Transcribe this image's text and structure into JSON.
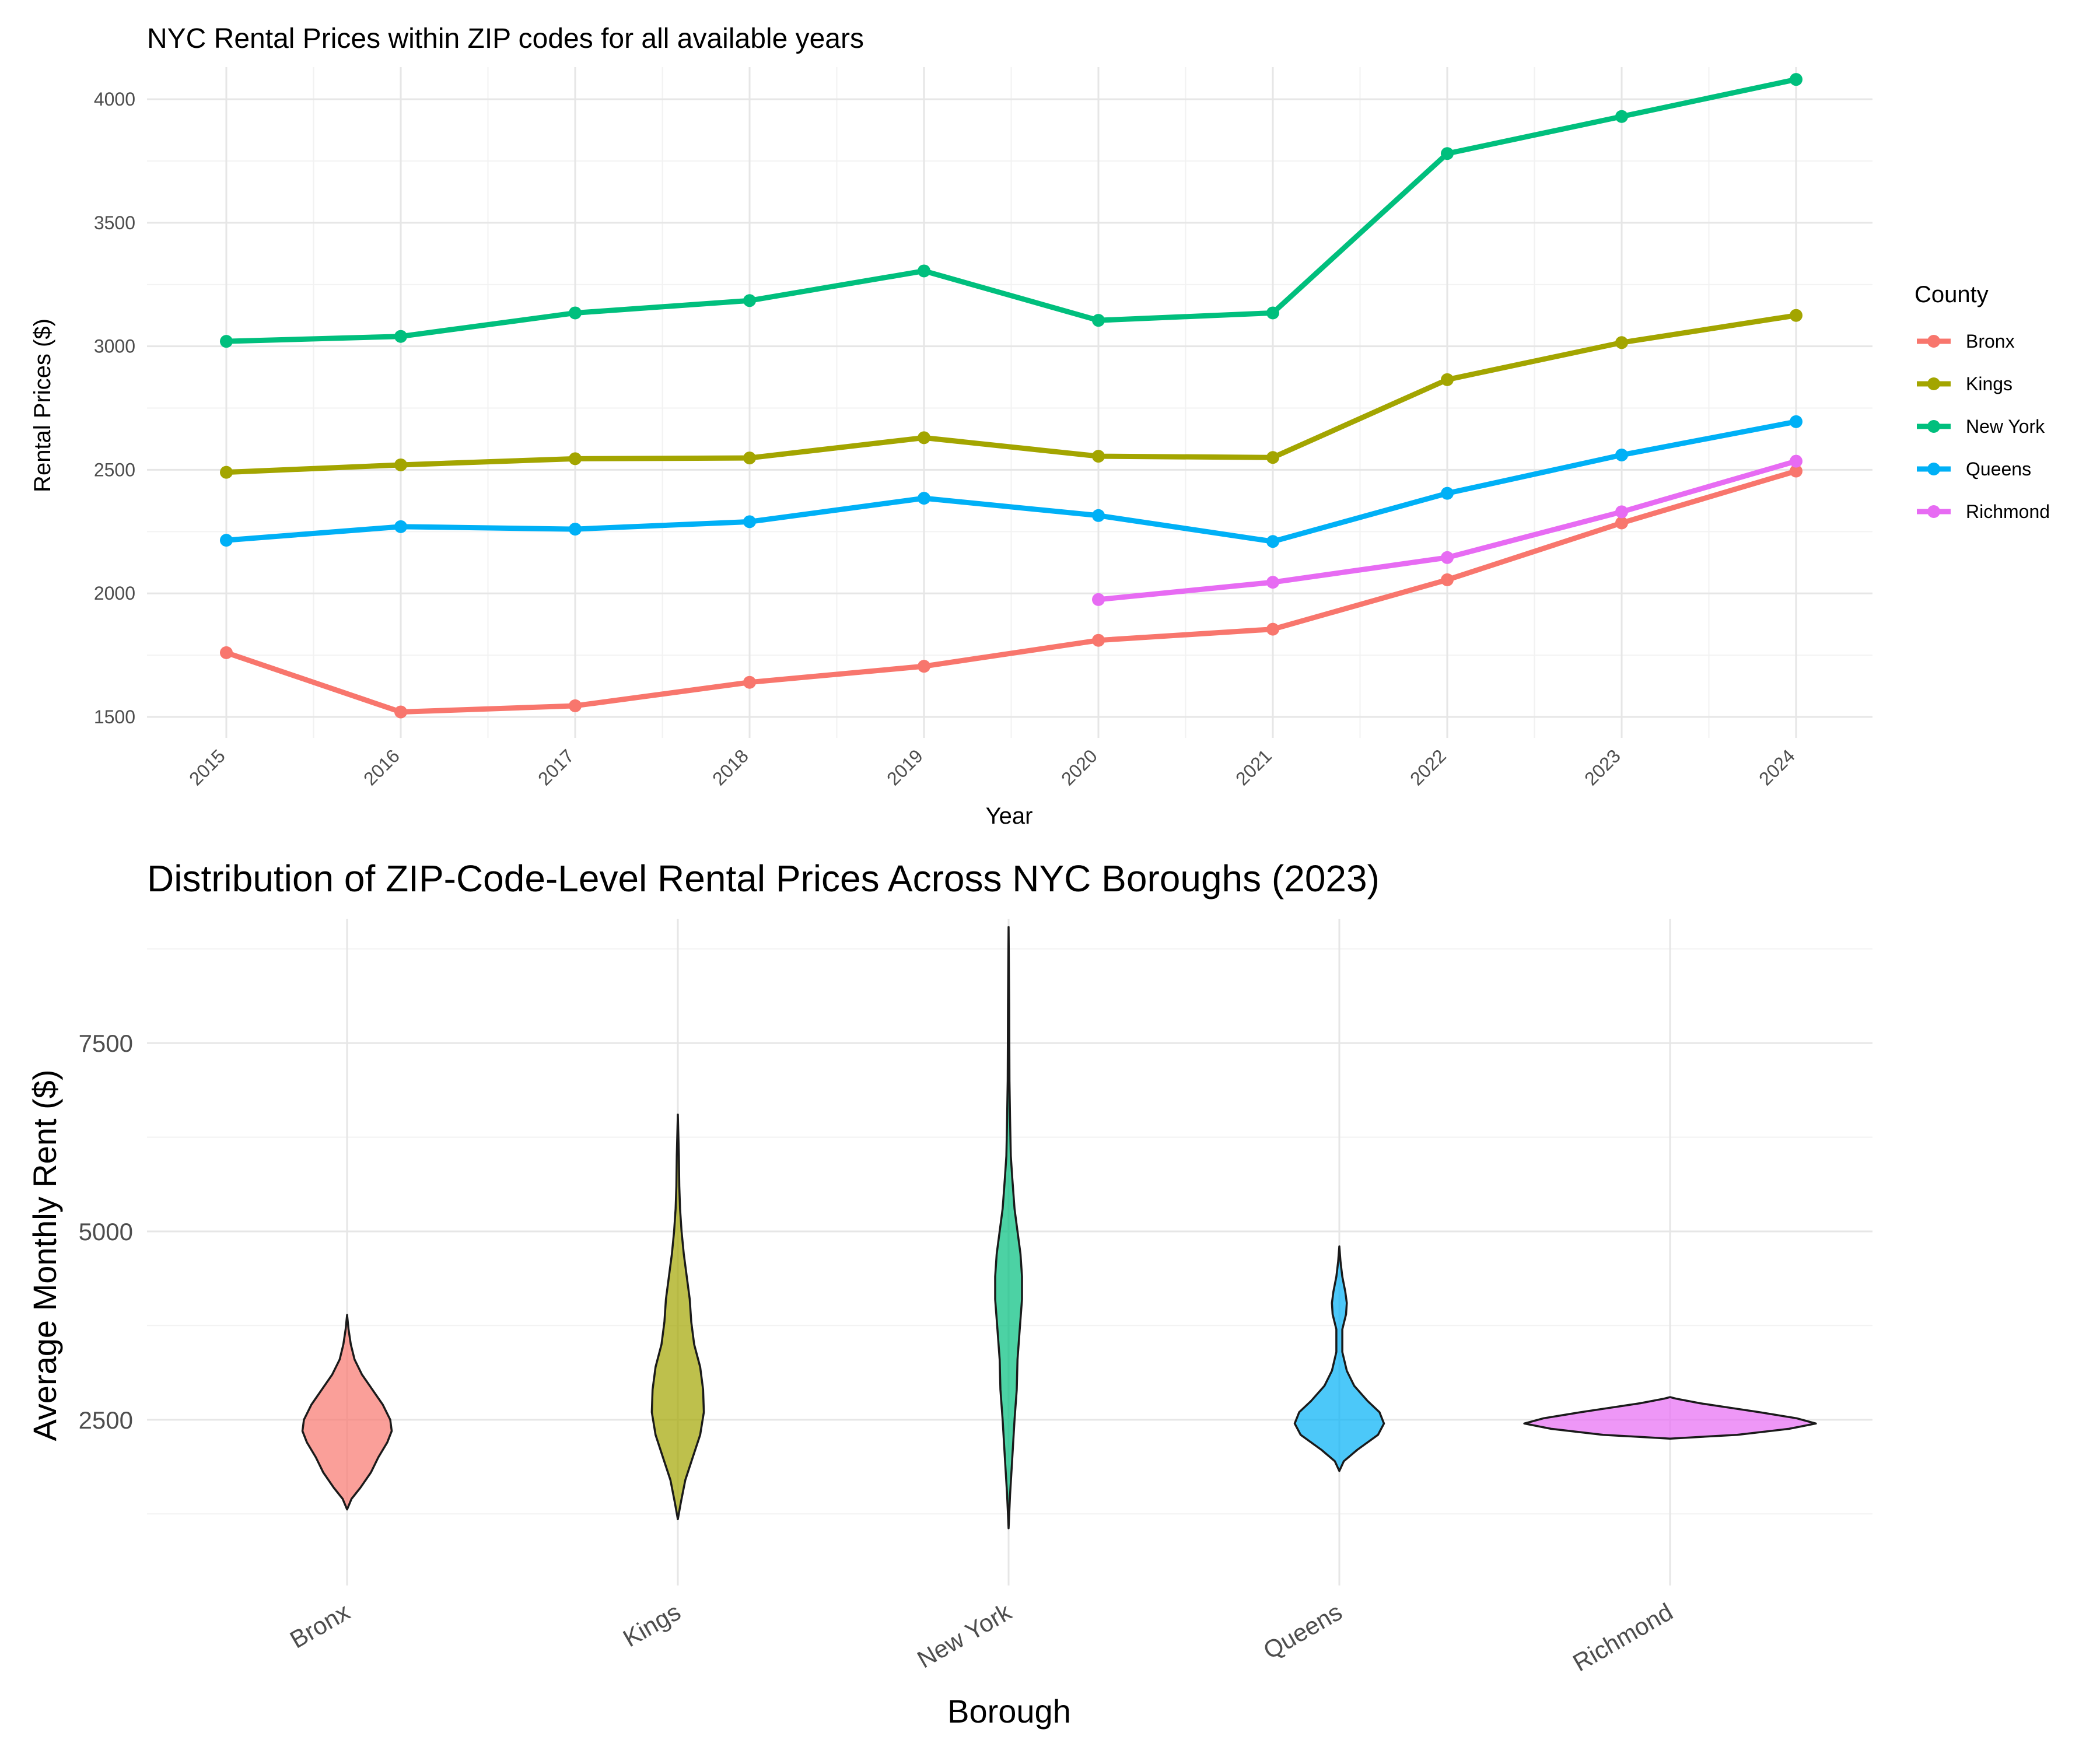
{
  "chart_data": [
    {
      "type": "line",
      "title": "NYC Rental Prices within ZIP codes for all available years",
      "xlabel": "Year",
      "ylabel": "Rental Prices ($)",
      "x": [
        2015,
        2016,
        2017,
        2018,
        2019,
        2020,
        2021,
        2022,
        2023,
        2024
      ],
      "x_tick_labels": [
        "2015",
        "2016",
        "2017",
        "2018",
        "2019",
        "2020",
        "2021",
        "2022",
        "2023",
        "2024"
      ],
      "y_ticks": [
        1500,
        2000,
        2500,
        3000,
        3500,
        4000
      ],
      "y_tick_labels": [
        "1500",
        "2000",
        "2500",
        "3000",
        "3500",
        "4000"
      ],
      "ylim": [
        1415,
        4130
      ],
      "grid": true,
      "legend_title": "County",
      "legend_position": "right",
      "series": [
        {
          "name": "Bronx",
          "color": "#F8766D",
          "values": [
            1760,
            1520,
            1545,
            1640,
            1705,
            1810,
            1855,
            2055,
            2285,
            2495
          ]
        },
        {
          "name": "Kings",
          "color": "#A3A500",
          "values": [
            2490,
            2520,
            2545,
            2548,
            2630,
            2555,
            2550,
            2865,
            3015,
            3125
          ]
        },
        {
          "name": "New York",
          "color": "#00BF7D",
          "values": [
            3020,
            3040,
            3135,
            3185,
            3305,
            3105,
            3135,
            3780,
            3930,
            4080
          ]
        },
        {
          "name": "Queens",
          "color": "#00B0F6",
          "values": [
            2215,
            2270,
            2260,
            2290,
            2385,
            2315,
            2210,
            2405,
            2560,
            2695
          ]
        },
        {
          "name": "Richmond",
          "color": "#E76BF3",
          "values": [
            null,
            null,
            null,
            null,
            null,
            1975,
            2045,
            2145,
            2330,
            2535
          ]
        }
      ]
    },
    {
      "type": "violin",
      "title": "Distribution of ZIP-Code-Level Rental Prices Across NYC Boroughs (2023)",
      "xlabel": "Borough",
      "ylabel": "Average Monthly Rent ($)",
      "categories": [
        "Bronx",
        "Kings",
        "New York",
        "Queens",
        "Richmond"
      ],
      "y_ticks": [
        2500,
        5000,
        7500
      ],
      "y_tick_labels": [
        "2500",
        "5000",
        "7500"
      ],
      "ylim": [
        300,
        9150
      ],
      "grid": true,
      "series": [
        {
          "name": "Bronx",
          "color": "#F8766D",
          "range": [
            1310,
            3890
          ],
          "density": [
            [
              1310,
              0.0
            ],
            [
              1450,
              0.03
            ],
            [
              1600,
              0.09
            ],
            [
              1800,
              0.16
            ],
            [
              2000,
              0.21
            ],
            [
              2200,
              0.27
            ],
            [
              2350,
              0.3
            ],
            [
              2500,
              0.29
            ],
            [
              2700,
              0.24
            ],
            [
              2900,
              0.17
            ],
            [
              3100,
              0.1
            ],
            [
              3300,
              0.05
            ],
            [
              3500,
              0.025
            ],
            [
              3700,
              0.01
            ],
            [
              3890,
              0.0
            ]
          ]
        },
        {
          "name": "Kings",
          "color": "#A3A500",
          "range": [
            1180,
            6550
          ],
          "density": [
            [
              1180,
              0.0
            ],
            [
              1400,
              0.02
            ],
            [
              1700,
              0.05
            ],
            [
              2000,
              0.1
            ],
            [
              2300,
              0.15
            ],
            [
              2600,
              0.175
            ],
            [
              2900,
              0.17
            ],
            [
              3200,
              0.15
            ],
            [
              3500,
              0.11
            ],
            [
              3800,
              0.09
            ],
            [
              4100,
              0.08
            ],
            [
              4400,
              0.06
            ],
            [
              4700,
              0.04
            ],
            [
              5000,
              0.025
            ],
            [
              5300,
              0.015
            ],
            [
              5600,
              0.01
            ],
            [
              6000,
              0.007
            ],
            [
              6550,
              0.0
            ]
          ]
        },
        {
          "name": "New York",
          "color": "#00BF7D",
          "range": [
            1060,
            9040
          ],
          "density": [
            [
              1060,
              0.0
            ],
            [
              1500,
              0.01
            ],
            [
              2000,
              0.025
            ],
            [
              2500,
              0.04
            ],
            [
              2900,
              0.055
            ],
            [
              3300,
              0.06
            ],
            [
              3700,
              0.075
            ],
            [
              4100,
              0.09
            ],
            [
              4400,
              0.09
            ],
            [
              4700,
              0.08
            ],
            [
              5000,
              0.06
            ],
            [
              5300,
              0.04
            ],
            [
              5700,
              0.025
            ],
            [
              6000,
              0.015
            ],
            [
              6500,
              0.01
            ],
            [
              7000,
              0.006
            ],
            [
              8000,
              0.004
            ],
            [
              9040,
              0.0
            ]
          ]
        },
        {
          "name": "Queens",
          "color": "#00B0F6",
          "range": [
            1820,
            4800
          ],
          "density": [
            [
              1820,
              0.0
            ],
            [
              1950,
              0.03
            ],
            [
              2100,
              0.12
            ],
            [
              2300,
              0.26
            ],
            [
              2450,
              0.3
            ],
            [
              2600,
              0.27
            ],
            [
              2750,
              0.19
            ],
            [
              2950,
              0.1
            ],
            [
              3150,
              0.05
            ],
            [
              3400,
              0.02
            ],
            [
              3700,
              0.02
            ],
            [
              3900,
              0.045
            ],
            [
              4050,
              0.05
            ],
            [
              4200,
              0.04
            ],
            [
              4400,
              0.02
            ],
            [
              4600,
              0.008
            ],
            [
              4800,
              0.0
            ]
          ]
        },
        {
          "name": "Richmond",
          "color": "#E76BF3",
          "range": [
            2250,
            2800
          ],
          "density": [
            [
              2250,
              0.0
            ],
            [
              2300,
              0.45
            ],
            [
              2380,
              0.8
            ],
            [
              2450,
              0.98
            ],
            [
              2520,
              0.85
            ],
            [
              2600,
              0.6
            ],
            [
              2660,
              0.4
            ],
            [
              2720,
              0.2
            ],
            [
              2780,
              0.04
            ],
            [
              2800,
              0.0
            ]
          ]
        }
      ]
    }
  ]
}
